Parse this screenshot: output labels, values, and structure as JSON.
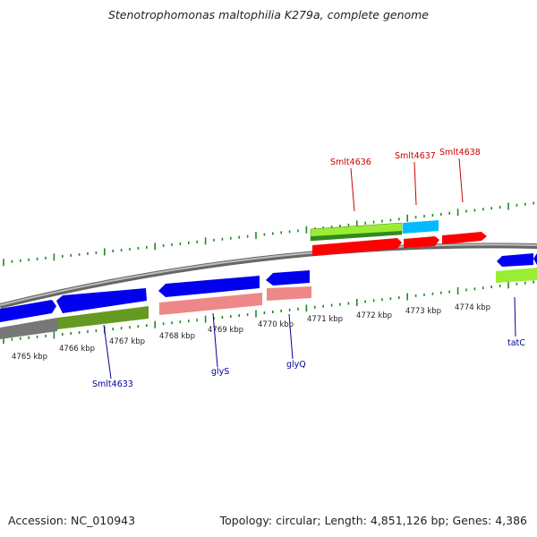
{
  "title": "Stenotrophomonas maltophilia K279a, complete genome",
  "footer": {
    "accession": "Accession: NC_010943",
    "summary": "Topology: circular; Length: 4,851,126 bp; Genes: 4,386"
  },
  "scale_labels": [
    "4765 kbp",
    "4766 kbp",
    "4767 kbp",
    "4768 kbp",
    "4769 kbp",
    "4770 kbp",
    "4771 kbp",
    "4772 kbp",
    "4773 kbp",
    "4774 kbp"
  ],
  "gene_labels": [
    {
      "text": "Smlt4636",
      "color": "#cc0000"
    },
    {
      "text": "Smlt4637",
      "color": "#cc0000"
    },
    {
      "text": "Smlt4638",
      "color": "#cc0000"
    },
    {
      "text": "Smlt4633",
      "color": "#000099"
    },
    {
      "text": "glyS",
      "color": "#000099"
    },
    {
      "text": "glyQ",
      "color": "#000099"
    },
    {
      "text": "tatC",
      "color": "#000099"
    }
  ],
  "colors": {
    "forward_cds": "#ff0000",
    "reverse_cds": "#0000ee",
    "forward_rna": "#00bbff",
    "lightgreen": "#99ee33",
    "darkgreen": "#669922",
    "salmon": "#ee8888",
    "backbone": "#888888",
    "ticks": "#228822"
  }
}
